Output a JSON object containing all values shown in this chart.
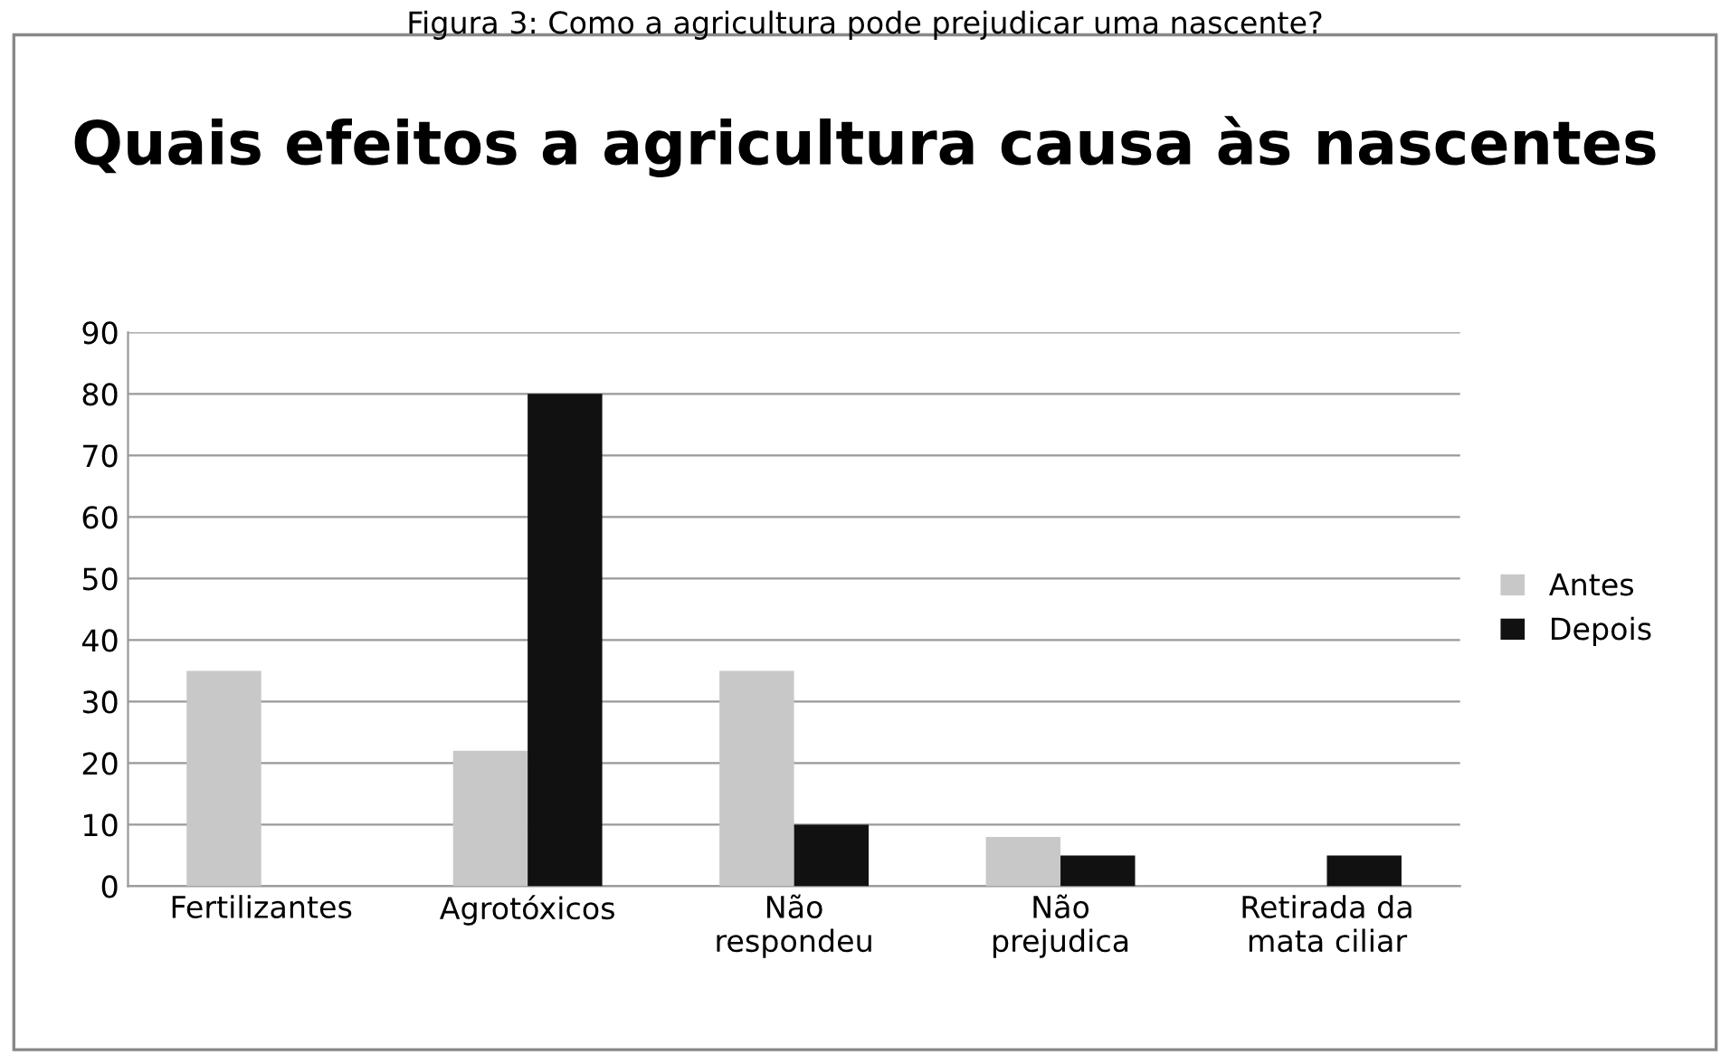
{
  "chart_data": {
    "type": "bar",
    "title": "Quais efeitos a agricultura causa às nascentes",
    "annotations": [
      "Figura 3: Como a agricultura pode prejudicar uma nascente?"
    ],
    "categories": [
      "Fertilizantes",
      "Agrotóxicos",
      "Não\nrespondeu",
      "Não\nprejudica",
      "Retirada da\nmata ciliar"
    ],
    "series": [
      {
        "name": "Antes",
        "color": "#c8c8c8",
        "values": [
          35,
          22,
          35,
          8,
          0
        ]
      },
      {
        "name": "Depois",
        "color": "#111111",
        "values": [
          0,
          80,
          10,
          5,
          5
        ]
      }
    ],
    "ylim": [
      0,
      90
    ],
    "yticks": [
      0,
      10,
      20,
      30,
      40,
      50,
      60,
      70,
      80,
      90
    ],
    "grid": "y",
    "legend": "right"
  }
}
